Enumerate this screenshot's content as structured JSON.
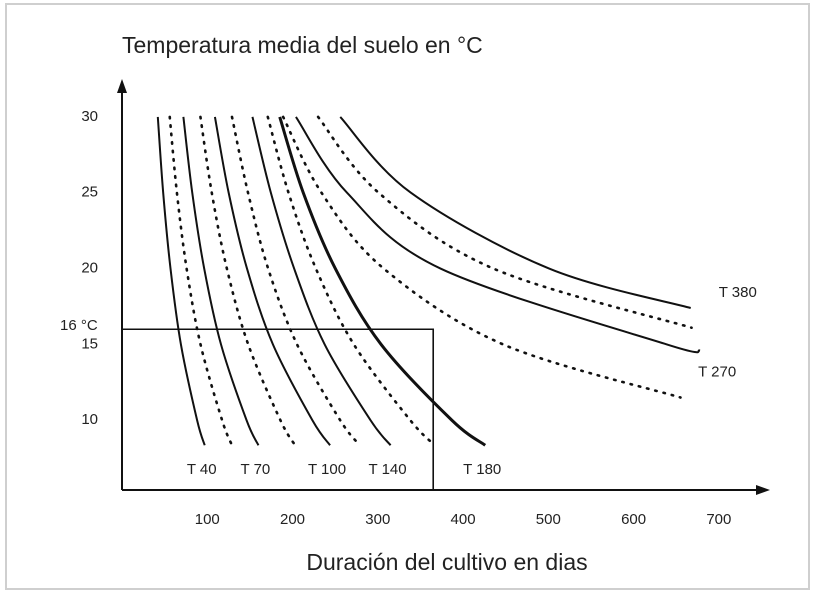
{
  "chart_data": {
    "type": "line",
    "title": "Temperatura media del suelo en °C",
    "xlabel": "Duración del cultivo en dias",
    "xlim": [
      0,
      760
    ],
    "ylim": [
      5.4,
      32.5
    ],
    "xticks": [
      100,
      200,
      300,
      400,
      500,
      600,
      700
    ],
    "yticks": [
      10,
      15,
      20,
      25,
      30
    ],
    "grid": false,
    "color": "#111111",
    "box": {
      "x": 365,
      "y": 16,
      "label": "16 °C"
    },
    "series": [
      {
        "name": "T 40",
        "style": "solid",
        "x": [
          42,
          48.3,
          56.9,
          69.1,
          88.1,
          97
        ],
        "values": [
          30,
          25,
          20,
          15,
          10,
          8.35
        ]
      },
      {
        "style": "dotted",
        "x": [
          56,
          64.4,
          75.8,
          92.1,
          117.4,
          129
        ],
        "values": [
          30,
          25,
          20,
          15,
          10,
          8.35
        ]
      },
      {
        "name": "T 70",
        "style": "solid",
        "x": [
          72,
          82.4,
          96.4,
          116.1,
          146.1,
          160
        ],
        "values": [
          30,
          25,
          20,
          15,
          10,
          8.35
        ]
      },
      {
        "style": "dotted",
        "x": [
          92,
          105.3,
          123,
          148,
          185.8,
          203
        ],
        "values": [
          30,
          25,
          20,
          15,
          10,
          8.35
        ]
      },
      {
        "name": "T 100",
        "style": "solid",
        "x": [
          109,
          125.1,
          146.6,
          177,
          223.3,
          244
        ],
        "values": [
          30,
          25,
          20,
          15,
          10,
          8.35
        ]
      },
      {
        "style": "dotted",
        "x": [
          129,
          147.8,
          171.4,
          205.3,
          255.9,
          279
        ],
        "values": [
          30,
          25,
          20,
          15,
          10,
          8.35
        ]
      },
      {
        "name": "T 140",
        "style": "solid",
        "x": [
          153,
          174.6,
          201.9,
          237.7,
          291.5,
          315
        ],
        "values": [
          30,
          25,
          20,
          15,
          10,
          8.35
        ]
      },
      {
        "style": "dotted",
        "x": [
          171,
          195.3,
          227.4,
          271.9,
          338.1,
          367
        ],
        "values": [
          30,
          25,
          20,
          15,
          10,
          8.35
        ]
      },
      {
        "name": "T 180",
        "style": "thick",
        "x": [
          185,
          212.6,
          250.2,
          303.9,
          386.9,
          426
        ],
        "values": [
          30,
          25,
          20,
          15,
          10,
          8.35
        ]
      },
      {
        "style": "dotted",
        "x": [
          189,
          234,
          307,
          447,
          655
        ],
        "values": [
          30,
          25,
          20,
          15,
          11.5
        ]
      },
      {
        "name": "T 270",
        "style": "solid",
        "x": [
          204,
          263.9,
          373.6,
          639,
          678
        ],
        "values": [
          30,
          25,
          20,
          15,
          14.6
        ]
      },
      {
        "style": "dotted",
        "x": [
          230,
          301,
          435.6,
          668
        ],
        "values": [
          30,
          25,
          20,
          16.1
        ]
      },
      {
        "name": "T 380",
        "style": "solid",
        "x": [
          256,
          338.8,
          501,
          667
        ],
        "values": [
          30,
          25,
          20,
          17.4
        ]
      }
    ]
  }
}
